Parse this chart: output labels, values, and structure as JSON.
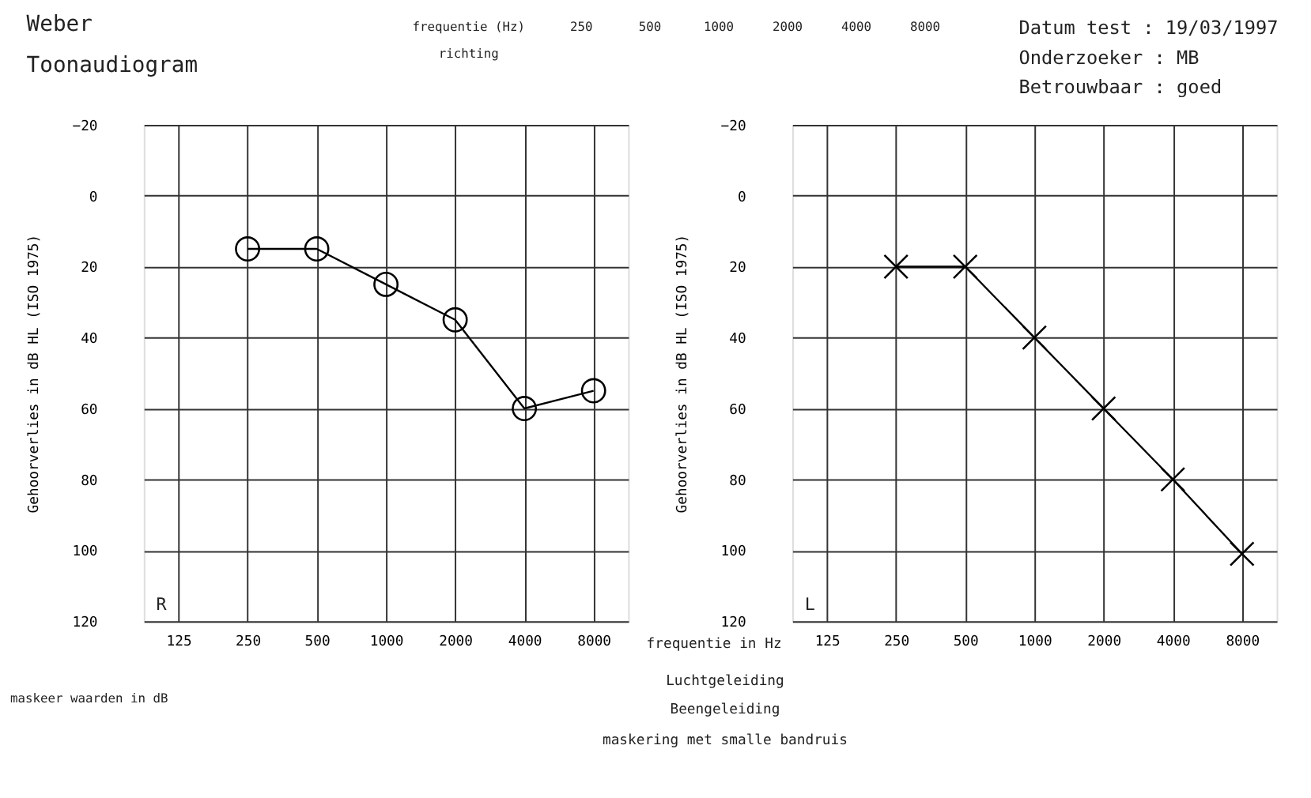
{
  "chart_data": [
    {
      "type": "line",
      "title": "Weber",
      "subtitle": "Toonaudiogram",
      "xlabel": "frequentie in Hz",
      "ylabel": "Gehoorverlies in dB HL (ISO 1975)",
      "categories": [
        "125",
        "250",
        "500",
        "1000",
        "2000",
        "4000",
        "8000"
      ],
      "series": [
        {
          "color": "#000000",
          "marker": "circle",
          "values": [
            null,
            15,
            15,
            25,
            35,
            60,
            55
          ]
        }
      ],
      "ylim": [
        120,
        -20
      ],
      "yticks": [
        -20,
        0,
        20,
        40,
        60,
        80,
        100,
        120
      ],
      "grid": true,
      "annotations": [
        "R",
        "Datum test  :  19/03/1997",
        "Onderzoeker :  MB",
        "Betrouwbaar :  goed",
        "frequentie (Hz)",
        "richting",
        "250",
        "500",
        "1000",
        "2000",
        "4000",
        "8000",
        "maskeer waarden in dB",
        "Luchtgeleiding",
        "Beengeleiding",
        "maskering  met smalle bandruis"
      ]
    },
    {
      "type": "line",
      "ylabel": "Gehoorverlies in dB HL (ISO 1975)",
      "categories": [
        "125",
        "250",
        "500",
        "1000",
        "2000",
        "4000",
        "8000"
      ],
      "series": [
        {
          "color": "#000000",
          "marker": "cross",
          "values": [
            null,
            20,
            20,
            40,
            60,
            80,
            101
          ]
        }
      ],
      "ylim": [
        120,
        -20
      ],
      "yticks": [
        -20,
        0,
        20,
        40,
        60,
        80,
        100,
        120
      ],
      "grid": true,
      "annotations": [
        "L"
      ]
    }
  ]
}
